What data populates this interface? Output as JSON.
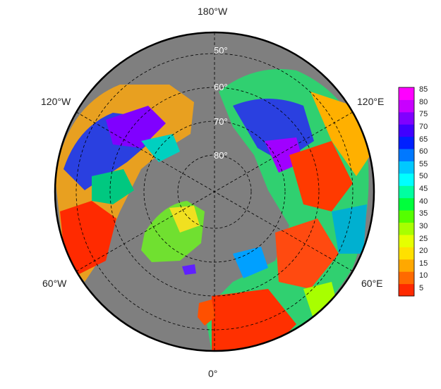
{
  "map": {
    "projection": "north polar stereographic",
    "background_ocean_color": "#7f7f7f",
    "lat_labels": [
      "50°",
      "60°",
      "70°",
      "80°"
    ],
    "lon_labels": {
      "top": "180°W",
      "bottom": "0°",
      "upper_left": "120°W",
      "upper_right": "120°E",
      "lower_left": "60°W",
      "lower_right": "60°E"
    }
  },
  "colorbar": {
    "ticks": [
      "85",
      "80",
      "75",
      "70",
      "65",
      "60",
      "55",
      "50",
      "45",
      "40",
      "35",
      "30",
      "25",
      "20",
      "15",
      "10",
      "5"
    ],
    "colors": [
      "#ff2a00",
      "#ff6a00",
      "#ffa800",
      "#ffe000",
      "#e6ff00",
      "#a8ff00",
      "#55ff00",
      "#00ff3c",
      "#00ffa0",
      "#00ffff",
      "#00c8ff",
      "#0078ff",
      "#0020ff",
      "#4000ff",
      "#8000ff",
      "#c800ff",
      "#ff00ff"
    ]
  }
}
